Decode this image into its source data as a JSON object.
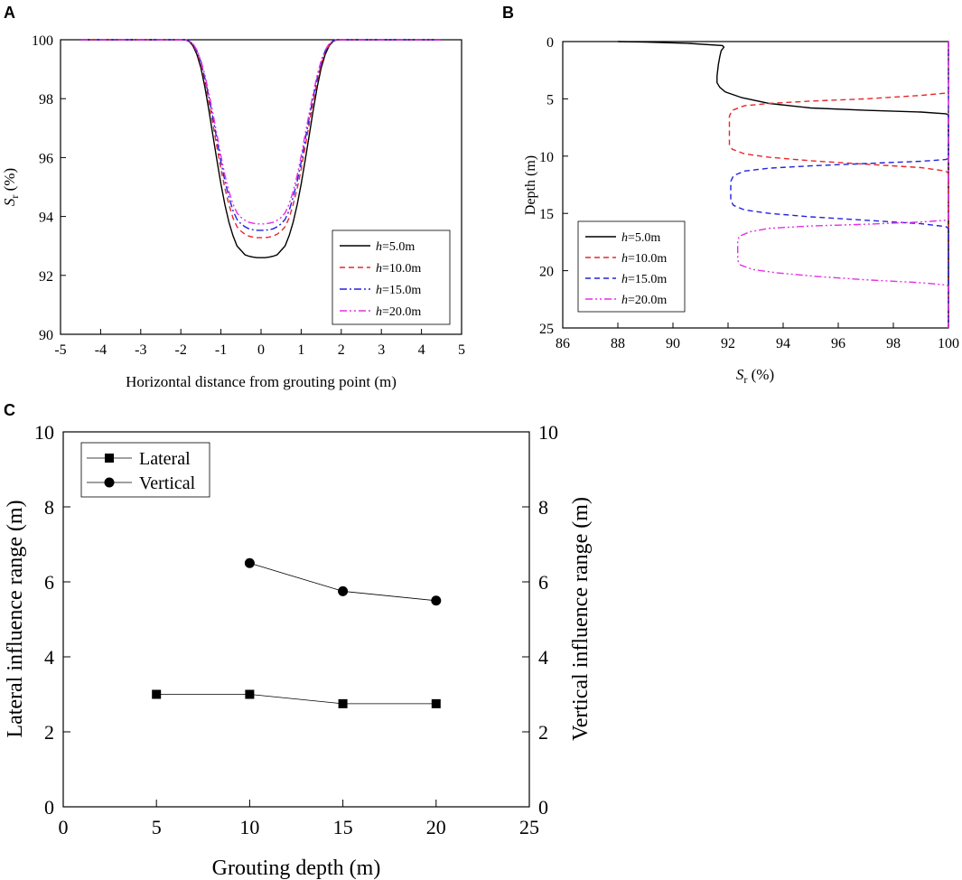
{
  "panels": {
    "A": {
      "label": "A"
    },
    "B": {
      "label": "B"
    },
    "C": {
      "label": "C"
    }
  },
  "chart_data": [
    {
      "panel": "A",
      "type": "line",
      "title": "",
      "xlabel": "Horizontal distance from grouting point (m)",
      "ylabel_main": "S",
      "ylabel_sub": "r",
      "ylabel_unit": " (%)",
      "xlim": [
        -5,
        5
      ],
      "ylim": [
        90,
        100
      ],
      "xticks": [
        -5,
        -4,
        -3,
        -2,
        -1,
        0,
        1,
        2,
        3,
        4,
        5
      ],
      "yticks": [
        90,
        92,
        94,
        96,
        98,
        100
      ],
      "legend_position": "lower-right",
      "series": [
        {
          "name_var": "h",
          "name_rest": "=5.0m",
          "color": "#000000",
          "dash": "solid",
          "x": [
            -4.5,
            -2.0,
            -1.9,
            -1.8,
            -1.7,
            -1.6,
            -1.5,
            -1.4,
            -1.3,
            -1.2,
            -1.1,
            -1.0,
            -0.9,
            -0.8,
            -0.7,
            -0.6,
            -0.5,
            -0.4,
            -0.3,
            -0.2,
            -0.1,
            0,
            0.1,
            0.2,
            0.3,
            0.4,
            0.5,
            0.6,
            0.7,
            0.8,
            0.9,
            1.0,
            1.1,
            1.2,
            1.3,
            1.4,
            1.5,
            1.6,
            1.7,
            1.8,
            1.9,
            2.0,
            4.5
          ],
          "y": [
            100,
            100,
            100,
            99.95,
            99.8,
            99.5,
            99.05,
            98.4,
            97.6,
            96.75,
            95.9,
            95.1,
            94.4,
            93.8,
            93.35,
            93.0,
            92.85,
            92.7,
            92.65,
            92.62,
            92.6,
            92.6,
            92.6,
            92.62,
            92.65,
            92.7,
            92.85,
            93.0,
            93.35,
            93.8,
            94.4,
            95.1,
            95.9,
            96.75,
            97.6,
            98.4,
            99.05,
            99.5,
            99.8,
            99.95,
            100,
            100,
            100
          ]
        },
        {
          "name_var": "h",
          "name_rest": "=10.0m",
          "color": "#e8262b",
          "dash": "dashed",
          "x": [
            -4.5,
            -2.0,
            -1.9,
            -1.8,
            -1.7,
            -1.6,
            -1.5,
            -1.4,
            -1.3,
            -1.2,
            -1.1,
            -1.0,
            -0.9,
            -0.8,
            -0.7,
            -0.6,
            -0.5,
            -0.4,
            -0.3,
            -0.2,
            -0.1,
            0,
            0.1,
            0.2,
            0.3,
            0.4,
            0.5,
            0.6,
            0.7,
            0.8,
            0.9,
            1.0,
            1.1,
            1.2,
            1.3,
            1.4,
            1.5,
            1.6,
            1.7,
            1.8,
            1.9,
            2.0,
            4.5
          ],
          "y": [
            100,
            100,
            100,
            99.96,
            99.83,
            99.58,
            99.18,
            98.6,
            97.9,
            97.15,
            96.35,
            95.6,
            94.95,
            94.4,
            93.95,
            93.65,
            93.5,
            93.4,
            93.33,
            93.3,
            93.28,
            93.28,
            93.28,
            93.3,
            93.33,
            93.4,
            93.5,
            93.65,
            93.95,
            94.4,
            94.95,
            95.6,
            96.35,
            97.15,
            97.9,
            98.6,
            99.18,
            99.58,
            99.83,
            99.96,
            100,
            100,
            100
          ]
        },
        {
          "name_var": "h",
          "name_rest": "=15.0m",
          "color": "#2222dd",
          "dash": "dashdot",
          "x": [
            -4.5,
            -2.0,
            -1.9,
            -1.8,
            -1.7,
            -1.6,
            -1.5,
            -1.4,
            -1.3,
            -1.2,
            -1.1,
            -1.0,
            -0.9,
            -0.8,
            -0.7,
            -0.6,
            -0.5,
            -0.4,
            -0.3,
            -0.2,
            -0.1,
            0,
            0.1,
            0.2,
            0.3,
            0.4,
            0.5,
            0.6,
            0.7,
            0.8,
            0.9,
            1.0,
            1.1,
            1.2,
            1.3,
            1.4,
            1.5,
            1.6,
            1.7,
            1.8,
            1.9,
            2.0,
            4.5
          ],
          "y": [
            100,
            100,
            100,
            99.97,
            99.85,
            99.62,
            99.25,
            98.7,
            98.05,
            97.35,
            96.6,
            95.85,
            95.2,
            94.65,
            94.2,
            93.9,
            93.75,
            93.65,
            93.58,
            93.55,
            93.53,
            93.53,
            93.53,
            93.55,
            93.58,
            93.65,
            93.75,
            93.9,
            94.2,
            94.65,
            95.2,
            95.85,
            96.6,
            97.35,
            98.05,
            98.7,
            99.25,
            99.62,
            99.85,
            99.97,
            100,
            100,
            100
          ]
        },
        {
          "name_var": "h",
          "name_rest": "=20.0m",
          "color": "#e62ee6",
          "dash": "dashdotdot",
          "x": [
            -4.5,
            -2.0,
            -1.9,
            -1.8,
            -1.7,
            -1.6,
            -1.5,
            -1.4,
            -1.3,
            -1.2,
            -1.1,
            -1.0,
            -0.9,
            -0.8,
            -0.7,
            -0.6,
            -0.5,
            -0.4,
            -0.3,
            -0.2,
            -0.1,
            0,
            0.1,
            0.2,
            0.3,
            0.4,
            0.5,
            0.6,
            0.7,
            0.8,
            0.9,
            1.0,
            1.1,
            1.2,
            1.3,
            1.4,
            1.5,
            1.6,
            1.7,
            1.8,
            1.9,
            2.0,
            4.5
          ],
          "y": [
            100,
            100,
            100,
            99.97,
            99.87,
            99.65,
            99.3,
            98.8,
            98.18,
            97.5,
            96.78,
            96.05,
            95.4,
            94.85,
            94.42,
            94.12,
            93.97,
            93.87,
            93.8,
            93.77,
            93.75,
            93.75,
            93.75,
            93.77,
            93.8,
            93.87,
            93.97,
            94.12,
            94.42,
            94.85,
            95.4,
            96.05,
            96.78,
            97.5,
            98.18,
            98.8,
            99.3,
            99.65,
            99.87,
            99.97,
            100,
            100,
            100
          ]
        }
      ]
    },
    {
      "panel": "B",
      "type": "line",
      "title": "",
      "xlabel_main": "S",
      "xlabel_sub": "r",
      "xlabel_unit": " (%)",
      "ylabel": "Depth (m)",
      "xlim": [
        86,
        100
      ],
      "ylim": [
        0,
        25
      ],
      "y_inverted": true,
      "xticks": [
        86,
        88,
        90,
        92,
        94,
        96,
        98,
        100
      ],
      "yticks": [
        0,
        5,
        10,
        15,
        20,
        25
      ],
      "legend_position": "lower-left",
      "series": [
        {
          "name_var": "h",
          "name_rest": "=5.0m",
          "color": "#000000",
          "dash": "solid",
          "x": [
            100,
            100,
            99.9,
            99,
            97,
            95,
            93.5,
            92.5,
            91.9,
            91.7,
            91.6,
            91.6,
            91.65,
            91.7,
            91.75,
            91.85,
            91.8,
            90.5,
            89,
            88
          ],
          "y": [
            25,
            6.4,
            6.3,
            6.15,
            6.0,
            5.8,
            5.4,
            4.9,
            4.4,
            4.0,
            3.6,
            3.0,
            2.0,
            1.3,
            0.8,
            0.5,
            0.35,
            0.15,
            0.05,
            0
          ]
        },
        {
          "name_var": "h",
          "name_rest": "=10.0m",
          "color": "#e8262b",
          "dash": "dashed",
          "x": [
            100,
            100,
            99.9,
            99,
            97,
            95,
            93.5,
            92.6,
            92.15,
            92.05,
            92.05,
            92.05,
            92.15,
            92.6,
            93.5,
            95,
            97,
            99,
            99.9,
            100,
            100
          ],
          "y": [
            0,
            4.4,
            4.5,
            4.7,
            5.0,
            5.2,
            5.4,
            5.6,
            6.0,
            6.5,
            8.0,
            9.0,
            9.4,
            9.8,
            10.1,
            10.4,
            10.7,
            11.0,
            11.3,
            11.5,
            25
          ]
        },
        {
          "name_var": "h",
          "name_rest": "=15.0m",
          "color": "#2222dd",
          "dash": "dashed",
          "x": [
            100,
            100,
            99.9,
            99,
            97,
            95,
            93.5,
            92.6,
            92.2,
            92.1,
            92.1,
            92.1,
            92.2,
            92.6,
            93.5,
            95,
            97,
            99,
            99.9,
            100,
            100
          ],
          "y": [
            0,
            10.2,
            10.3,
            10.45,
            10.65,
            10.85,
            11.05,
            11.3,
            11.7,
            12.2,
            13.2,
            13.9,
            14.3,
            14.7,
            15.0,
            15.3,
            15.6,
            15.9,
            16.15,
            16.3,
            25
          ]
        },
        {
          "name_var": "h",
          "name_rest": "=20.0m",
          "color": "#e62ee6",
          "dash": "dashdotdot",
          "x": [
            100,
            100,
            99.9,
            99,
            97,
            95,
            93.5,
            92.8,
            92.4,
            92.35,
            92.35,
            92.35,
            92.45,
            92.9,
            93.8,
            95.2,
            97,
            99,
            99.9,
            100,
            100
          ],
          "y": [
            0,
            15.5,
            15.6,
            15.75,
            15.95,
            16.1,
            16.3,
            16.6,
            17.0,
            17.5,
            18.5,
            19.1,
            19.5,
            19.9,
            20.2,
            20.5,
            20.8,
            21.05,
            21.25,
            21.35,
            25
          ]
        }
      ]
    },
    {
      "panel": "C",
      "type": "line",
      "title": "",
      "xlabel": "Grouting depth (m)",
      "ylabel": "Lateral influence range (m)",
      "ylabel_right": "Vertical influence range (m)",
      "xlim": [
        0,
        25
      ],
      "ylim": [
        0,
        10
      ],
      "ylim_right": [
        0,
        10
      ],
      "xticks": [
        0,
        5,
        10,
        15,
        20,
        25
      ],
      "yticks": [
        0,
        2,
        4,
        6,
        8,
        10
      ],
      "legend_position": "top-left",
      "series": [
        {
          "name": "Lateral",
          "marker": "square",
          "color": "#000000",
          "x": [
            5,
            10,
            15,
            20
          ],
          "y": [
            3.0,
            3.0,
            2.75,
            2.75
          ]
        },
        {
          "name": "Vertical",
          "marker": "circle",
          "color": "#000000",
          "x": [
            10,
            15,
            20
          ],
          "y": [
            6.5,
            5.75,
            5.5
          ]
        }
      ]
    }
  ]
}
